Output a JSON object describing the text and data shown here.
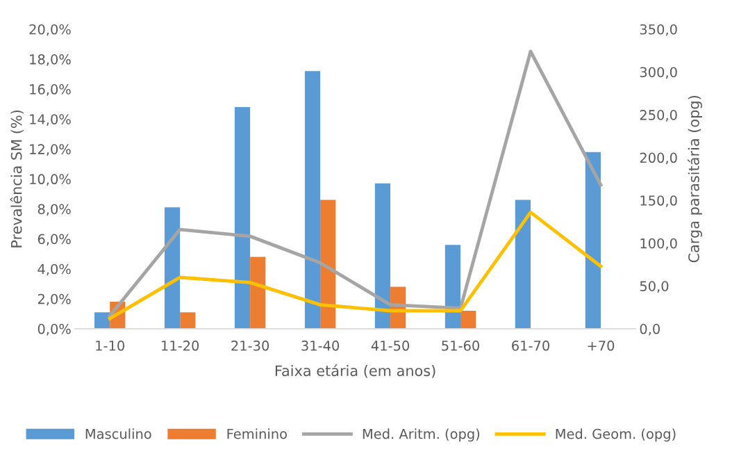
{
  "chart_data": {
    "type": "bar",
    "xlabel": "Faixa etária (em anos)",
    "ylabel": "Prevalência SM (%)",
    "y2label": "Carga parasitária (opg)",
    "categories": [
      "1-10",
      "11-20",
      "21-30",
      "31-40",
      "41-50",
      "51-60",
      "61-70",
      "+70"
    ],
    "series": [
      {
        "name": "Masculino",
        "color": "#5b9bd5",
        "values": [
          1.1,
          8.1,
          14.8,
          17.2,
          9.7,
          5.6,
          8.6,
          11.8
        ]
      },
      {
        "name": "Feminino",
        "color": "#ed7d31",
        "values": [
          1.8,
          1.1,
          4.8,
          8.6,
          2.8,
          1.2,
          0,
          0
        ]
      },
      {
        "name": "Med. Aritm. (opg)",
        "type": "line",
        "axis": "y2",
        "color": "#a5a5a5",
        "values": [
          15,
          116,
          108,
          77,
          28,
          24,
          324,
          168
        ]
      },
      {
        "name": "Med. Geom. (opg)",
        "type": "line",
        "axis": "y2",
        "color": "#ffc000",
        "values": [
          12,
          60,
          54,
          28,
          21,
          21,
          136,
          73
        ]
      }
    ],
    "ylim": [
      0,
      20
    ],
    "yticks": [
      {
        "value": 0,
        "label": "0,0%"
      },
      {
        "value": 2,
        "label": "2,0%"
      },
      {
        "value": 4,
        "label": "4,0%"
      },
      {
        "value": 6,
        "label": "6,0%"
      },
      {
        "value": 8,
        "label": "8,0%"
      },
      {
        "value": 10,
        "label": "10,0%"
      },
      {
        "value": 12,
        "label": "12,0%"
      },
      {
        "value": 14,
        "label": "14,0%"
      },
      {
        "value": 16,
        "label": "16,0%"
      },
      {
        "value": 18,
        "label": "18,0%"
      },
      {
        "value": 20,
        "label": "20,0%"
      }
    ],
    "y2lim": [
      0,
      350
    ],
    "y2ticks": [
      {
        "value": 0,
        "label": "0,0"
      },
      {
        "value": 50,
        "label": "50,0"
      },
      {
        "value": 100,
        "label": "100,0"
      },
      {
        "value": 150,
        "label": "150,0"
      },
      {
        "value": 200,
        "label": "200,0"
      },
      {
        "value": 250,
        "label": "250,0"
      },
      {
        "value": 300,
        "label": "300,0"
      },
      {
        "value": 350,
        "label": "350,0"
      }
    ],
    "grid": false,
    "legend": "bottom"
  }
}
